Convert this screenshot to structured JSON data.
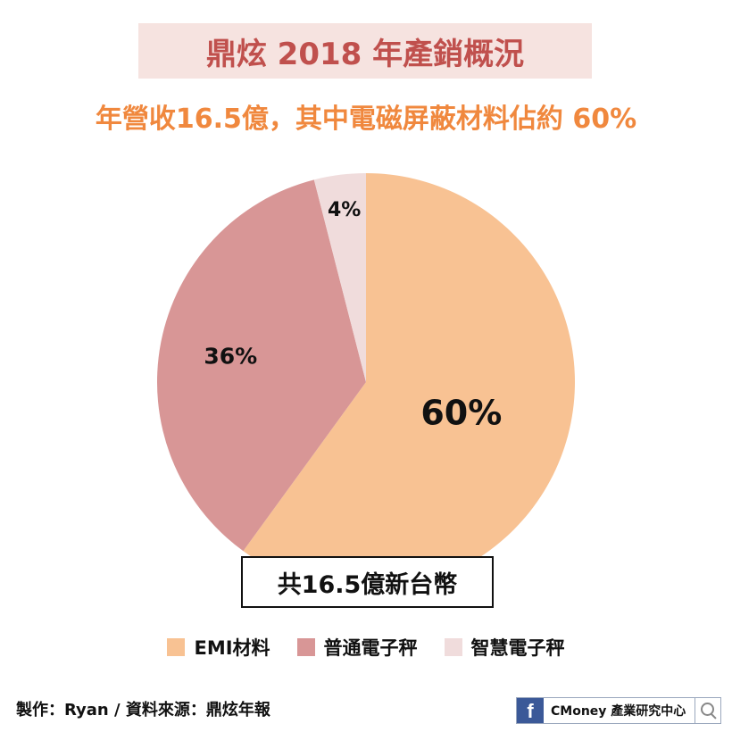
{
  "header": {
    "title": "鼎炫 2018 年產銷概況",
    "subtitle": "年營收16.5億，其中電磁屏蔽材料佔約 60%"
  },
  "total_label": "共16.5億新台幣",
  "credit": "製作：Ryan / 資料來源：鼎炫年報",
  "brand": {
    "icon": "facebook-icon",
    "text": "CMoney 產業研究中心",
    "search_icon": "search-icon"
  },
  "chart_data": {
    "type": "pie",
    "unit": "%",
    "slices": [
      {
        "label": "EMI材料",
        "value": 60,
        "value_label": "60%",
        "color": "#f8c293"
      },
      {
        "label": "普通電子秤",
        "value": 36,
        "value_label": "36%",
        "color": "#d89696"
      },
      {
        "label": "智慧電子秤",
        "value": 4,
        "value_label": "4%",
        "color": "#f0dcdc"
      }
    ],
    "start": "12 o'clock",
    "direction": "clockwise",
    "legend_position": "bottom"
  }
}
